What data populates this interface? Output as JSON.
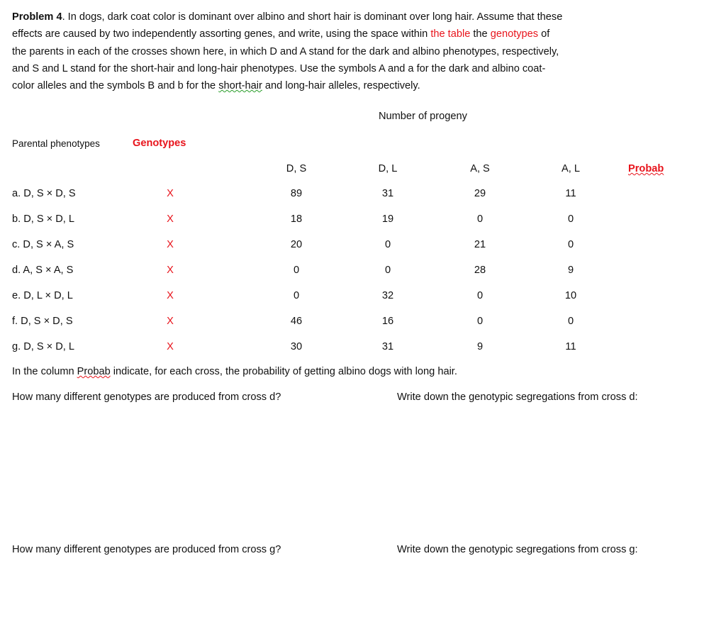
{
  "problem": {
    "title": "Problem 4",
    "line1": ". In dogs, dark coat color is dominant over albino and short hair is dominant over long hair. Assume that these",
    "line2a": "effects are caused by two independently assorting genes, and write, using the space within ",
    "line2b": "the table",
    "line2c": " the ",
    "line2d": "genotypes",
    "line2e": " of",
    "line3": "the parents in each of the crosses shown here, in which D and A stand for the dark and albino phenotypes, respectively,",
    "line4": "and S and L stand for the short-hair and long-hair phenotypes.  Use the symbols A and a for the dark and albino coat-",
    "line5a": "color alleles and the symbols B and b for the ",
    "line5b": "short-hair",
    "line5c": " and long-hair alleles, respectively."
  },
  "table": {
    "progeny_header": "Number of progeny",
    "parental_header": "Parental phenotypes",
    "genotypes_header": "Genotypes",
    "columns": [
      "D, S",
      "D, L",
      "A, S",
      "A, L"
    ],
    "probab_header": "Probab",
    "rows": [
      {
        "cross": "a.  D, S × D, S",
        "geno": "X",
        "values": [
          "89",
          "31",
          "29",
          "11"
        ]
      },
      {
        "cross": "b.  D, S × D, L",
        "geno": "X",
        "values": [
          "18",
          "19",
          "0",
          "0"
        ]
      },
      {
        "cross": "c.  D, S × A, S",
        "geno": "X",
        "values": [
          "20",
          "0",
          "21",
          "0"
        ]
      },
      {
        "cross": "d.  A, S × A, S",
        "geno": "X",
        "values": [
          "0",
          "0",
          "28",
          "9"
        ]
      },
      {
        "cross": "e.  D, L × D, L",
        "geno": "X",
        "values": [
          "0",
          "32",
          "0",
          "10"
        ]
      },
      {
        "cross": "f.  D, S × D, S",
        "geno": "X",
        "values": [
          "46",
          "16",
          "0",
          "0"
        ]
      },
      {
        "cross": "g.  D, S × D, L",
        "geno": "X",
        "values": [
          "30",
          "31",
          "9",
          "11"
        ]
      }
    ]
  },
  "questions": {
    "probab_a": "In the column ",
    "probab_b": "Probab",
    "probab_c": " indicate, for each cross, the probability of getting albino dogs with long hair.",
    "q_d_count": "How many different genotypes are produced from cross d?",
    "q_d_seg": "Write down the genotypic segregations from cross d:",
    "q_g_count": "How many different genotypes are produced from cross g?",
    "q_g_seg": "Write down the genotypic segregations from cross g:"
  }
}
